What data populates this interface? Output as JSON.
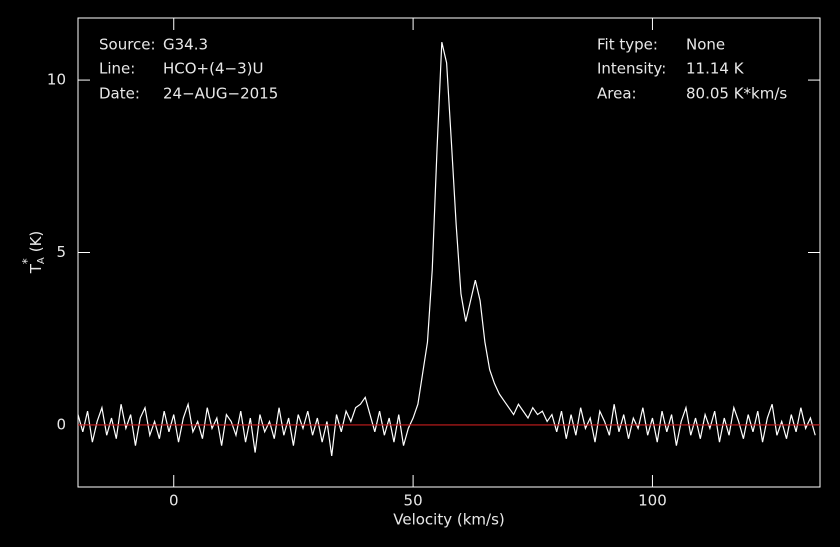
{
  "chart_data": {
    "type": "line",
    "xlabel": "Velocity (km/s)",
    "ylabel": {
      "base": "T",
      "sub": "A",
      "sup": "*",
      "unit": "(K)"
    },
    "annotations_left": [
      {
        "label": "Source:",
        "value": "G34.3"
      },
      {
        "label": "Line:",
        "value": "HCO+(4−3)U"
      },
      {
        "label": "Date:",
        "value": "24−AUG−2015"
      }
    ],
    "annotations_right": [
      {
        "label": "Fit type:",
        "value": "None"
      },
      {
        "label": "Intensity:",
        "value": "11.14 K"
      },
      {
        "label": "Area:",
        "value": "80.05 K*km/s"
      }
    ],
    "xlim": [
      -20,
      135
    ],
    "ylim": [
      -1.8,
      11.8
    ],
    "xticks": [
      0,
      50,
      100
    ],
    "yticks": [
      0,
      5,
      10
    ],
    "baseline": {
      "value": 0,
      "color": "#c81e1e"
    },
    "x": [
      -20,
      -19,
      -18,
      -17,
      -16,
      -15,
      -14,
      -13,
      -12,
      -11,
      -10,
      -9,
      -8,
      -7,
      -6,
      -5,
      -4,
      -3,
      -2,
      -1,
      0,
      1,
      2,
      3,
      4,
      5,
      6,
      7,
      8,
      9,
      10,
      11,
      12,
      13,
      14,
      15,
      16,
      17,
      18,
      19,
      20,
      21,
      22,
      23,
      24,
      25,
      26,
      27,
      28,
      29,
      30,
      31,
      32,
      33,
      34,
      35,
      36,
      37,
      38,
      39,
      40,
      41,
      42,
      43,
      44,
      45,
      46,
      47,
      48,
      49,
      50,
      51,
      52,
      53,
      54,
      55,
      56,
      57,
      58,
      59,
      60,
      61,
      62,
      63,
      64,
      65,
      66,
      67,
      68,
      69,
      70,
      71,
      72,
      73,
      74,
      75,
      76,
      77,
      78,
      79,
      80,
      81,
      82,
      83,
      84,
      85,
      86,
      87,
      88,
      89,
      90,
      91,
      92,
      93,
      94,
      95,
      96,
      97,
      98,
      99,
      100,
      101,
      102,
      103,
      104,
      105,
      106,
      107,
      108,
      109,
      110,
      111,
      112,
      113,
      114,
      115,
      116,
      117,
      118,
      119,
      120,
      121,
      122,
      123,
      124,
      125,
      126,
      127,
      128,
      129,
      130,
      131,
      132,
      133,
      134
    ],
    "series": [
      {
        "name": "spectrum",
        "color": "#ffffff",
        "values": [
          0.3,
          -0.2,
          0.4,
          -0.5,
          0.1,
          0.5,
          -0.3,
          0.2,
          -0.4,
          0.6,
          -0.1,
          0.3,
          -0.6,
          0.2,
          0.5,
          -0.3,
          0.1,
          -0.4,
          0.4,
          -0.2,
          0.3,
          -0.5,
          0.2,
          0.6,
          -0.2,
          0.1,
          -0.4,
          0.5,
          -0.1,
          0.2,
          -0.6,
          0.3,
          0.1,
          -0.3,
          0.4,
          -0.5,
          0.2,
          -0.8,
          0.3,
          -0.2,
          0.1,
          -0.4,
          0.5,
          -0.3,
          0.2,
          -0.6,
          0.3,
          -0.1,
          0.4,
          -0.3,
          0.2,
          -0.5,
          0.1,
          -0.9,
          0.3,
          -0.2,
          0.4,
          0.1,
          0.5,
          0.6,
          0.8,
          0.3,
          -0.2,
          0.4,
          -0.3,
          0.2,
          -0.5,
          0.3,
          -0.6,
          -0.1,
          0.2,
          0.6,
          1.5,
          2.4,
          4.5,
          8.0,
          11.1,
          10.5,
          8.2,
          5.8,
          3.8,
          3.0,
          3.6,
          4.2,
          3.6,
          2.4,
          1.6,
          1.2,
          0.9,
          0.7,
          0.5,
          0.3,
          0.6,
          0.4,
          0.2,
          0.5,
          0.3,
          0.4,
          0.1,
          0.3,
          -0.2,
          0.4,
          -0.4,
          0.3,
          -0.3,
          0.5,
          -0.1,
          0.2,
          -0.5,
          0.4,
          0.1,
          -0.3,
          0.6,
          -0.2,
          0.3,
          -0.4,
          0.2,
          -0.1,
          0.5,
          -0.3,
          0.2,
          -0.5,
          0.4,
          -0.2,
          0.3,
          -0.6,
          0.1,
          0.5,
          -0.3,
          0.2,
          -0.4,
          0.3,
          -0.1,
          0.4,
          -0.5,
          0.2,
          -0.3,
          0.5,
          0.1,
          -0.4,
          0.3,
          -0.2,
          0.4,
          -0.5,
          0.2,
          0.6,
          -0.3,
          0.1,
          -0.4,
          0.3,
          -0.2,
          0.5,
          -0.1,
          0.2,
          -0.3
        ]
      }
    ]
  }
}
